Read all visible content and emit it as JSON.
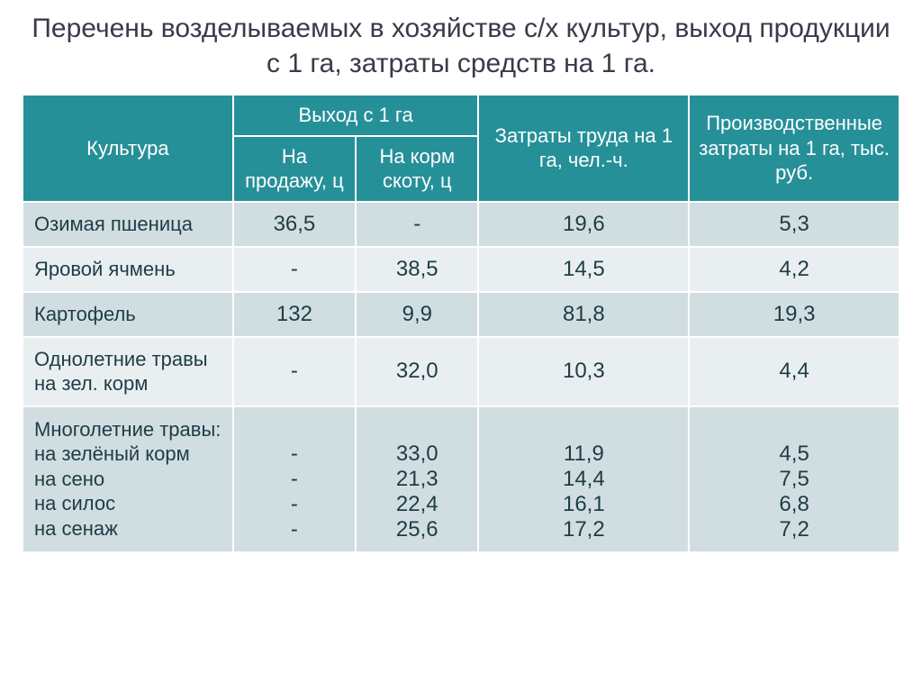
{
  "title": "Перечень возделываемых в хозяйстве  с/х культур, выход продукции с 1 га, затраты средств на 1 га.",
  "table": {
    "headers": {
      "culture": "Культура",
      "yield_group": "Выход с 1 га",
      "yield_sale": "На продажу, ц",
      "yield_feed": "На корм скоту, ц",
      "labor": "Затраты труда на 1 га, чел.-ч.",
      "cost": "Производственные затраты на 1 га, тыс. руб."
    },
    "rows": [
      {
        "culture": "Озимая пшеница",
        "sale": "36,5",
        "feed": "-",
        "labor": "19,6",
        "cost": "5,3"
      },
      {
        "culture": "Яровой ячмень",
        "sale": "-",
        "feed": "38,5",
        "labor": "14,5",
        "cost": "4,2"
      },
      {
        "culture": "Картофель",
        "sale": "132",
        "feed": "9,9",
        "labor": "81,8",
        "cost": "19,3"
      },
      {
        "culture": "Однолетние травы на зел. корм",
        "sale": "-",
        "feed": "32,0",
        "labor": "10,3",
        "cost": "4,4"
      },
      {
        "culture": "Многолетние травы:\nна зелёный корм\nна сено\nна силос\nна сенаж",
        "sale": "\n-\n-\n-\n-",
        "feed": "\n33,0\n21,3\n22,4\n25,6",
        "labor": "\n11,9\n14,4\n16,1\n17,2",
        "cost": "\n4,5\n7,5\n6,8\n7,2"
      }
    ]
  },
  "style": {
    "header_bg": "#269099",
    "header_fg": "#ffffff",
    "row_a_bg": "#d1dee1",
    "row_b_bg": "#e9eff1",
    "title_color": "#3a3a4a",
    "cell_text_color": "#1e3c46",
    "border_color": "#ffffff",
    "title_fontsize": 30,
    "header_fontsize": 22,
    "cell_fontsize": 24,
    "label_fontsize": 22,
    "column_widths": {
      "culture": "24%",
      "yield_sale": "14%",
      "yield_feed": "14%",
      "labor": "24%",
      "cost": "24%"
    }
  }
}
